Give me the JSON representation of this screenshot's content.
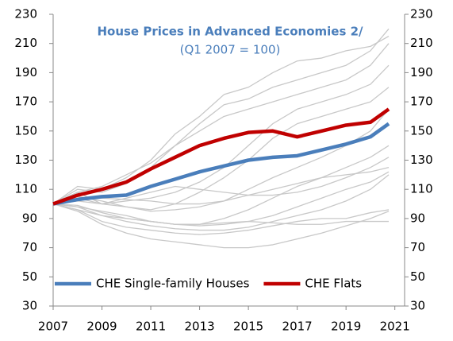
{
  "chart_data": {
    "type": "line",
    "title": "House Prices in Advanced Economies 2/",
    "subtitle": "(Q1 2007 = 100)",
    "x": [
      2007,
      2008,
      2009,
      2010,
      2011,
      2012,
      2013,
      2014,
      2015,
      2016,
      2017,
      2018,
      2019,
      2020,
      2020.75
    ],
    "xlim": [
      2007,
      2021.4
    ],
    "xticks": [
      2007,
      2009,
      2011,
      2013,
      2015,
      2017,
      2019,
      2021
    ],
    "ylim": [
      30,
      230
    ],
    "yticks": [
      30,
      50,
      70,
      90,
      110,
      130,
      150,
      170,
      190,
      210,
      230
    ],
    "y2lim": [
      30,
      230
    ],
    "y2ticks": [
      30,
      50,
      70,
      90,
      110,
      130,
      150,
      170,
      190,
      210,
      230
    ],
    "grid": false,
    "legend": "bottom",
    "series": [
      {
        "color": "#c8c8c8",
        "values": [
          100,
          110,
          108,
          114,
          125,
          140,
          155,
          168,
          172,
          180,
          185,
          190,
          195,
          205,
          220
        ]
      },
      {
        "color": "#c8c8c8",
        "values": [
          100,
          112,
          110,
          118,
          130,
          148,
          160,
          175,
          180,
          190,
          198,
          200,
          205,
          208,
          215
        ]
      },
      {
        "color": "#c8c8c8",
        "values": [
          100,
          108,
          112,
          120,
          128,
          140,
          150,
          160,
          165,
          170,
          175,
          180,
          185,
          195,
          210
        ]
      },
      {
        "color": "#c8c8c8",
        "values": [
          100,
          104,
          100,
          102,
          104,
          108,
          115,
          125,
          140,
          155,
          165,
          170,
          175,
          182,
          195
        ]
      },
      {
        "color": "#c8c8c8",
        "values": [
          100,
          105,
          102,
          98,
          96,
          100,
          108,
          118,
          130,
          145,
          155,
          160,
          165,
          170,
          180
        ]
      },
      {
        "color": "#c8c8c8",
        "values": [
          100,
          102,
          100,
          98,
          95,
          96,
          98,
          102,
          110,
          118,
          125,
          132,
          140,
          150,
          165
        ]
      },
      {
        "color": "#c8c8c8",
        "values": [
          100,
          98,
          95,
          92,
          88,
          86,
          86,
          90,
          96,
          104,
          112,
          118,
          125,
          132,
          140
        ]
      },
      {
        "color": "#c8c8c8",
        "values": [
          100,
          103,
          104,
          103,
          102,
          100,
          100,
          102,
          106,
          110,
          114,
          118,
          120,
          122,
          125
        ]
      },
      {
        "color": "#c8c8c8",
        "values": [
          100,
          96,
          92,
          90,
          88,
          86,
          85,
          86,
          88,
          92,
          98,
          104,
          110,
          115,
          122
        ]
      },
      {
        "color": "#c8c8c8",
        "values": [
          100,
          98,
          92,
          88,
          85,
          83,
          82,
          82,
          84,
          88,
          92,
          96,
          102,
          110,
          120
        ]
      },
      {
        "color": "#c8c8c8",
        "values": [
          100,
          95,
          86,
          80,
          76,
          74,
          72,
          70,
          70,
          72,
          76,
          80,
          85,
          90,
          95
        ]
      },
      {
        "color": "#c8c8c8",
        "values": [
          100,
          99,
          94,
          90,
          88,
          86,
          86,
          87,
          88,
          87,
          86,
          86,
          88,
          88,
          88
        ]
      },
      {
        "color": "#c8c8c8",
        "values": [
          100,
          108,
          100,
          104,
          108,
          112,
          110,
          108,
          106,
          106,
          108,
          112,
          118,
          125,
          132
        ]
      },
      {
        "color": "#c8c8c8",
        "values": [
          100,
          96,
          88,
          84,
          82,
          80,
          79,
          80,
          82,
          85,
          88,
          90,
          90,
          94,
          96
        ]
      },
      {
        "name": "CHE Single-family Houses",
        "color": "#4a7ebb",
        "values": [
          100,
          103,
          105,
          106,
          112,
          117,
          122,
          126,
          130,
          132,
          133,
          137,
          141,
          146,
          155
        ]
      },
      {
        "name": "CHE Flats",
        "color": "#c00000",
        "values": [
          100,
          106,
          110,
          115,
          124,
          132,
          140,
          145,
          149,
          150,
          146,
          150,
          154,
          156,
          165
        ]
      }
    ]
  }
}
